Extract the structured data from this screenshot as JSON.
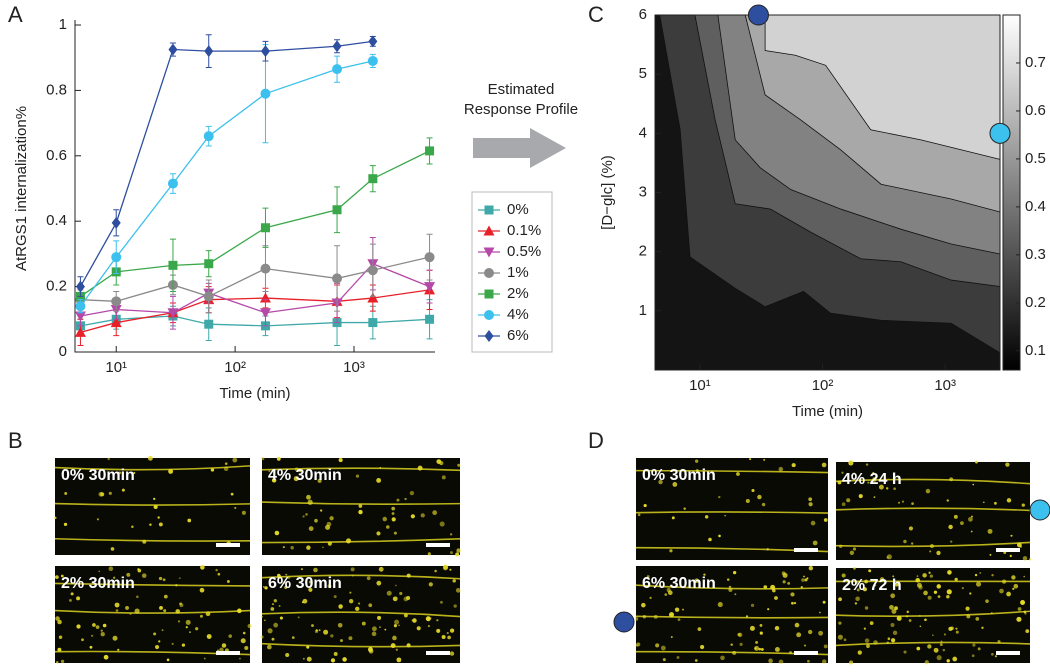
{
  "panel_labels": [
    "A",
    "B",
    "C",
    "D"
  ],
  "arrow_text": [
    "Estimated",
    "Response Profile"
  ],
  "images": {
    "B": [
      "0% 30min",
      "4% 30min",
      "2% 30min",
      "6% 30min"
    ],
    "D": [
      "0% 30min",
      "4% 24 h",
      "6% 30min",
      "2% 72 h"
    ]
  },
  "chart_data": [
    {
      "type": "line",
      "xscale": "log",
      "xlabel": "Time (min)",
      "ylabel": "AtRGS1 internalization%",
      "x": [
        5,
        10,
        30,
        60,
        180,
        720,
        1440,
        4320
      ],
      "xlim": [
        4.5,
        4800
      ],
      "ylim": [
        0,
        1
      ],
      "xticks": [
        {
          "value": 10,
          "label": "10¹"
        },
        {
          "value": 100,
          "label": "10²"
        },
        {
          "value": 1000,
          "label": "10³"
        }
      ],
      "yticks": [
        0,
        0.2,
        0.4,
        0.6,
        0.8,
        1
      ],
      "series": [
        {
          "name": "0%",
          "color": "#3fa9a9",
          "marker": "square",
          "values": [
            0.08,
            0.1,
            0.11,
            0.085,
            0.08,
            0.09,
            0.09,
            0.1
          ],
          "errors": [
            0.02,
            0.03,
            0.03,
            0.05,
            0.03,
            0.07,
            0.05,
            0.06
          ]
        },
        {
          "name": "0.1%",
          "color": "#e8202a",
          "marker": "triangle-up",
          "values": [
            0.06,
            0.09,
            0.12,
            0.16,
            0.165,
            0.155,
            0.165,
            0.19
          ],
          "errors": [
            0.04,
            0.04,
            0.03,
            0.04,
            0.03,
            0.05,
            0.04,
            0.06
          ]
        },
        {
          "name": "0.5%",
          "color": "#b548a8",
          "marker": "triangle-down",
          "values": [
            0.11,
            0.13,
            0.12,
            0.18,
            0.12,
            0.15,
            0.27,
            0.2
          ],
          "errors": [
            0.03,
            0.03,
            0.05,
            0.03,
            0.04,
            0.06,
            0.08,
            0.05
          ]
        },
        {
          "name": "1%",
          "color": "#8a8a8a",
          "marker": "circle",
          "values": [
            0.16,
            0.155,
            0.205,
            0.17,
            0.255,
            0.225,
            0.25,
            0.29
          ],
          "errors": [
            0.03,
            0.03,
            0.03,
            0.05,
            0.07,
            0.1,
            0.08,
            0.07
          ]
        },
        {
          "name": "2%",
          "color": "#3aa84a",
          "marker": "square",
          "values": [
            0.17,
            0.245,
            0.265,
            0.27,
            0.38,
            0.435,
            0.53,
            0.615
          ],
          "errors": [
            0.03,
            0.04,
            0.08,
            0.04,
            0.06,
            0.07,
            0.04,
            0.04
          ]
        },
        {
          "name": "4%",
          "color": "#3cc0ee",
          "marker": "circle",
          "values": [
            0.14,
            0.29,
            0.515,
            0.66,
            0.79,
            0.865,
            0.89,
            null
          ],
          "errors": [
            0.02,
            0.05,
            0.03,
            0.03,
            0.15,
            0.04,
            0.02,
            null
          ]
        },
        {
          "name": "6%",
          "color": "#2e4ea0",
          "marker": "diamond",
          "values": [
            0.2,
            0.395,
            0.925,
            0.92,
            0.92,
            0.935,
            0.95,
            null
          ],
          "errors": [
            0.03,
            0.04,
            0.02,
            0.05,
            0.03,
            0.02,
            0.015,
            null
          ]
        }
      ]
    },
    {
      "type": "contour",
      "xscale": "log",
      "xlabel": "Time (min)",
      "ylabel": "[D−glc] (%)",
      "xlim": [
        4.3,
        2800
      ],
      "ylim": [
        0,
        6
      ],
      "xticks": [
        {
          "value": 10,
          "label": "10¹"
        },
        {
          "value": 100,
          "label": "10²"
        },
        {
          "value": 1000,
          "label": "10³"
        }
      ],
      "yticks": [
        1,
        2,
        3,
        4,
        5,
        6
      ],
      "base_color": "#141414",
      "contours": [
        {
          "color": "#3c3c3c",
          "x": [
            4.7,
            6.9,
            8.3,
            19.4,
            34,
            70,
            116,
            300,
            1120,
            2800
          ],
          "y": [
            6,
            4.06,
            1.91,
            1.38,
            1.07,
            1.33,
            0.96,
            0.84,
            0.79,
            0.29
          ]
        },
        {
          "color": "#5f5f5f",
          "x": [
            9.1,
            13.3,
            19.4,
            37.5,
            80,
            205,
            435,
            1120,
            2800
          ],
          "y": [
            6,
            4.23,
            2.81,
            2.72,
            2.33,
            1.88,
            1.83,
            1.52,
            1.41
          ]
        },
        {
          "color": "#828282",
          "x": [
            14,
            19.4,
            31,
            55,
            141,
            435,
            1120,
            2800
          ],
          "y": [
            6,
            3.89,
            3.42,
            3.05,
            2.72,
            2.38,
            2.13,
            1.96
          ]
        },
        {
          "color": "#a8a8a8",
          "x": [
            23.4,
            34,
            66,
            141,
            300,
            1120,
            2800
          ],
          "y": [
            6,
            4.65,
            4.23,
            3.72,
            3.14,
            2.89,
            2.67
          ]
        },
        {
          "color": "#d2d2d2",
          "x": [
            34,
            34,
            60,
            106,
            247,
            635,
            2800
          ],
          "y": [
            6,
            5.4,
            5.32,
            5.15,
            4.06,
            3.89,
            3.56
          ]
        }
      ],
      "colorbar": {
        "clim": [
          0.06,
          0.8
        ],
        "ticks": [
          0.1,
          0.2,
          0.3,
          0.4,
          0.5,
          0.6,
          0.7
        ]
      },
      "markers": [
        {
          "x": 30,
          "y": 6,
          "color": "#2e4ea0"
        },
        {
          "x": 2800,
          "y": 4,
          "color": "#3cc0ee"
        }
      ]
    }
  ]
}
